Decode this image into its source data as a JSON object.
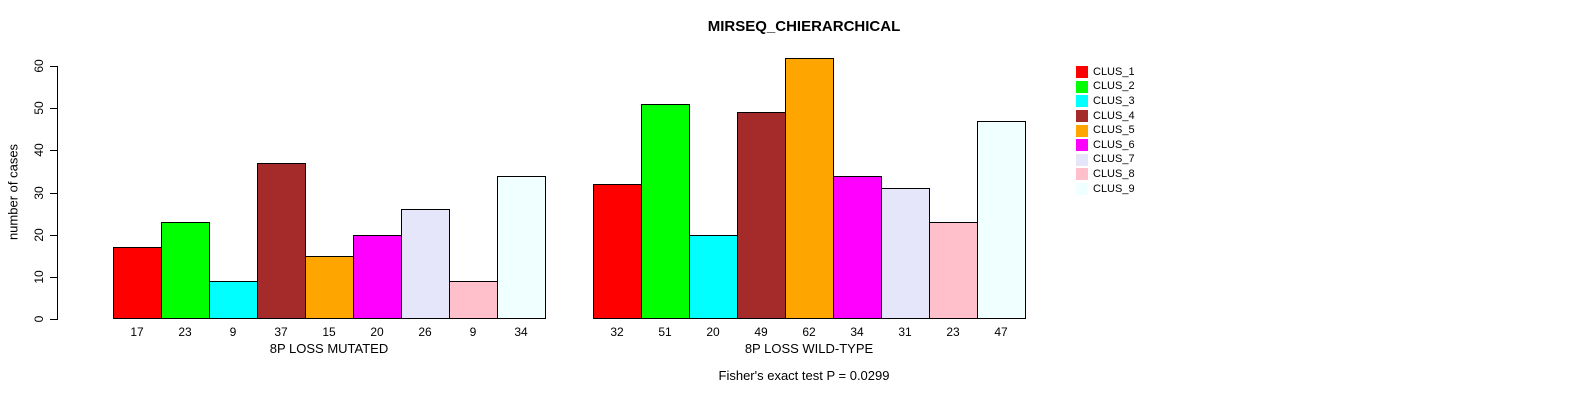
{
  "chart_data": {
    "type": "bar",
    "title": "MIRSEQ_CHIERARCHICAL",
    "ylabel": "number of cases",
    "annotation": "Fisher's exact test P = 0.0299",
    "ylim": [
      0,
      62
    ],
    "yticks": [
      0,
      10,
      20,
      30,
      40,
      50,
      60
    ],
    "grid": false,
    "legend_position": "right",
    "clusters": [
      {
        "name": "CLUS_1",
        "color": "#FF0000"
      },
      {
        "name": "CLUS_2",
        "color": "#00FF00"
      },
      {
        "name": "CLUS_3",
        "color": "#00FFFF"
      },
      {
        "name": "CLUS_4",
        "color": "#A52A2A"
      },
      {
        "name": "CLUS_5",
        "color": "#FFA500"
      },
      {
        "name": "CLUS_6",
        "color": "#FF00FF"
      },
      {
        "name": "CLUS_7",
        "color": "#E6E6FA"
      },
      {
        "name": "CLUS_8",
        "color": "#FFC0CB"
      },
      {
        "name": "CLUS_9",
        "color": "#F0FFFF"
      }
    ],
    "groups": [
      {
        "label": "8P LOSS MUTATED",
        "values": [
          17,
          23,
          9,
          37,
          15,
          20,
          26,
          9,
          34
        ]
      },
      {
        "label": "8P LOSS WILD-TYPE",
        "values": [
          32,
          51,
          20,
          49,
          62,
          34,
          31,
          23,
          47
        ]
      }
    ]
  }
}
